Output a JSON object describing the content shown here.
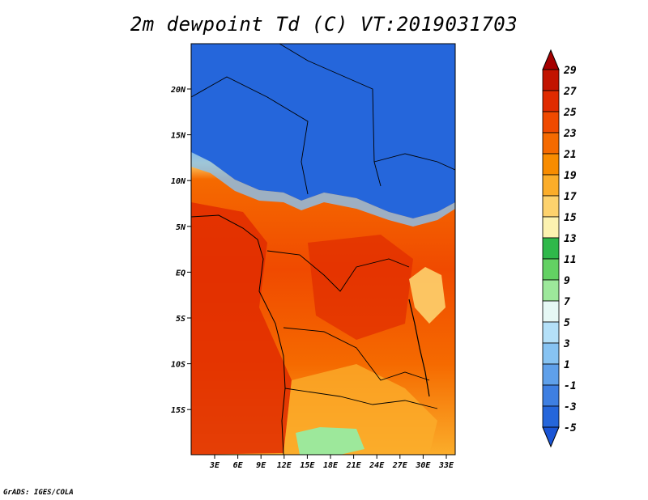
{
  "title": "2m dewpoint Td (C) VT:2019031703",
  "credit": "GrADS: IGES/COLA",
  "map": {
    "lat_ticks": [
      "20N",
      "15N",
      "10N",
      "5N",
      "EQ",
      "5S",
      "10S",
      "15S"
    ],
    "lon_ticks": [
      "3E",
      "6E",
      "9E",
      "12E",
      "15E",
      "18E",
      "21E",
      "24E",
      "27E",
      "30E",
      "33E"
    ],
    "land_outline_color": "#000000"
  },
  "colorbar": {
    "labels": [
      "29",
      "27",
      "25",
      "23",
      "21",
      "19",
      "17",
      "15",
      "13",
      "11",
      "9",
      "7",
      "5",
      "3",
      "1",
      "-1",
      "-3",
      "-5"
    ],
    "colors": [
      "#a50000",
      "#c21400",
      "#e02b00",
      "#f04a00",
      "#f56a00",
      "#f88c00",
      "#fbad2a",
      "#fdd26d",
      "#fcf2b0",
      "#2fb84a",
      "#63d163",
      "#9de89b",
      "#e6f8f5",
      "#b4e0f8",
      "#87c3f2",
      "#5fa0ea",
      "#3e7fe2",
      "#2566db",
      "#1a55d6"
    ]
  }
}
